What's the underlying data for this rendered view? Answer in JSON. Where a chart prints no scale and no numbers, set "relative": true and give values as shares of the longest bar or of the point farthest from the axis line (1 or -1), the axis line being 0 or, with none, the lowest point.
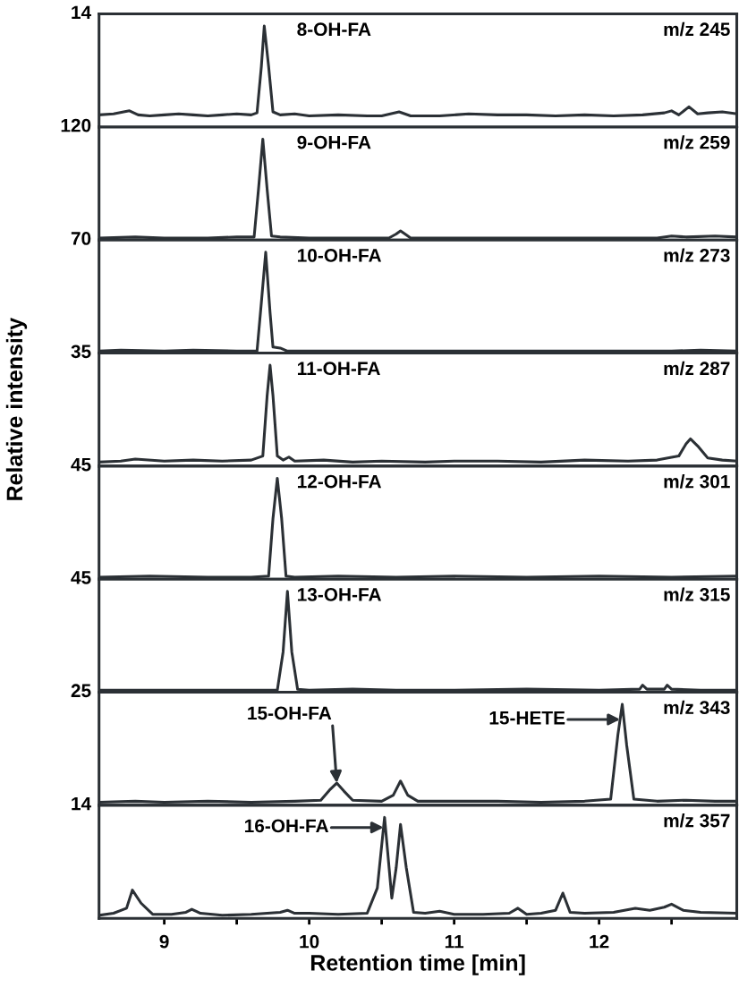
{
  "chart_data": [
    {
      "type": "line",
      "relative": true,
      "xlim": [
        8.55,
        12.95
      ],
      "tick_labels": false,
      "annotations": [
        "14",
        "8-OH-FA",
        "m/z 245"
      ],
      "series": [
        {
          "color": "#2b3035",
          "x": [
            8.55,
            8.65,
            8.72,
            8.76,
            8.82,
            8.9,
            9.0,
            9.1,
            9.2,
            9.3,
            9.4,
            9.5,
            9.6,
            9.64,
            9.67,
            9.69,
            9.72,
            9.75,
            9.8,
            9.9,
            10.0,
            10.2,
            10.4,
            10.5,
            10.62,
            10.7,
            10.9,
            11.1,
            11.3,
            11.5,
            11.7,
            11.9,
            12.1,
            12.3,
            12.45,
            12.5,
            12.55,
            12.62,
            12.68,
            12.75,
            12.85,
            12.95
          ],
          "values": [
            0.12,
            0.13,
            0.15,
            0.16,
            0.12,
            0.11,
            0.12,
            0.13,
            0.12,
            0.11,
            0.12,
            0.13,
            0.12,
            0.14,
            0.6,
            1.0,
            0.6,
            0.15,
            0.12,
            0.13,
            0.11,
            0.12,
            0.11,
            0.11,
            0.15,
            0.11,
            0.11,
            0.13,
            0.12,
            0.12,
            0.11,
            0.12,
            0.11,
            0.12,
            0.14,
            0.16,
            0.12,
            0.2,
            0.13,
            0.14,
            0.15,
            0.13
          ]
        }
      ]
    },
    {
      "type": "line",
      "relative": true,
      "xlim": [
        8.55,
        12.95
      ],
      "tick_labels": false,
      "annotations": [
        "120",
        "9-OH-FA",
        "m/z 259"
      ],
      "series": [
        {
          "color": "#2b3035",
          "x": [
            8.55,
            8.8,
            9.0,
            9.3,
            9.5,
            9.62,
            9.65,
            9.68,
            9.71,
            9.74,
            9.8,
            10.0,
            10.3,
            10.55,
            10.6,
            10.63,
            10.67,
            10.7,
            11.0,
            11.5,
            12.0,
            12.4,
            12.5,
            12.6,
            12.8,
            12.95
          ],
          "values": [
            0.02,
            0.03,
            0.02,
            0.02,
            0.03,
            0.03,
            0.5,
            1.0,
            0.5,
            0.04,
            0.03,
            0.02,
            0.02,
            0.02,
            0.06,
            0.09,
            0.05,
            0.02,
            0.02,
            0.02,
            0.02,
            0.02,
            0.04,
            0.03,
            0.04,
            0.03
          ]
        }
      ]
    },
    {
      "type": "line",
      "relative": true,
      "xlim": [
        8.55,
        12.95
      ],
      "tick_labels": false,
      "annotations": [
        "70",
        "10-OH-FA",
        "m/z 273"
      ],
      "series": [
        {
          "color": "#2b3035",
          "x": [
            8.55,
            8.7,
            9.0,
            9.2,
            9.5,
            9.64,
            9.67,
            9.7,
            9.73,
            9.75,
            9.8,
            9.85,
            10.0,
            10.5,
            11.0,
            11.5,
            12.0,
            12.5,
            12.7,
            12.95
          ],
          "values": [
            0.02,
            0.03,
            0.02,
            0.03,
            0.02,
            0.02,
            0.5,
            1.0,
            0.4,
            0.06,
            0.05,
            0.02,
            0.02,
            0.02,
            0.02,
            0.02,
            0.02,
            0.02,
            0.03,
            0.02
          ]
        }
      ]
    },
    {
      "type": "line",
      "relative": true,
      "xlim": [
        8.55,
        12.95
      ],
      "tick_labels": false,
      "ylabel": "Relative intensity",
      "annotations": [
        "35",
        "11-OH-FA",
        "m/z 287"
      ],
      "series": [
        {
          "color": "#2b3035",
          "x": [
            8.55,
            8.7,
            8.8,
            9.0,
            9.2,
            9.4,
            9.6,
            9.68,
            9.71,
            9.73,
            9.75,
            9.78,
            9.82,
            9.86,
            9.9,
            10.1,
            10.3,
            10.5,
            10.8,
            11.0,
            11.3,
            11.6,
            11.9,
            12.2,
            12.4,
            12.55,
            12.6,
            12.63,
            12.68,
            12.75,
            12.85,
            12.95
          ],
          "values": [
            0.04,
            0.05,
            0.07,
            0.05,
            0.06,
            0.05,
            0.06,
            0.1,
            0.7,
            1.0,
            0.7,
            0.1,
            0.06,
            0.09,
            0.05,
            0.06,
            0.04,
            0.05,
            0.04,
            0.05,
            0.05,
            0.04,
            0.06,
            0.05,
            0.06,
            0.1,
            0.22,
            0.27,
            0.2,
            0.08,
            0.06,
            0.05
          ]
        }
      ]
    },
    {
      "type": "line",
      "relative": true,
      "xlim": [
        8.55,
        12.95
      ],
      "tick_labels": false,
      "annotations": [
        "45",
        "12-OH-FA",
        "m/z 301"
      ],
      "series": [
        {
          "color": "#2b3035",
          "x": [
            8.55,
            8.9,
            9.3,
            9.6,
            9.72,
            9.75,
            9.78,
            9.81,
            9.84,
            9.9,
            10.2,
            10.6,
            11.0,
            11.5,
            12.0,
            12.5,
            12.95
          ],
          "values": [
            0.02,
            0.03,
            0.02,
            0.02,
            0.03,
            0.6,
            1.0,
            0.6,
            0.03,
            0.02,
            0.03,
            0.02,
            0.03,
            0.02,
            0.03,
            0.02,
            0.03
          ]
        }
      ]
    },
    {
      "type": "line",
      "relative": true,
      "xlim": [
        8.55,
        12.95
      ],
      "tick_labels": false,
      "annotations": [
        "45",
        "13-OH-FA",
        "m/z 315"
      ],
      "series": [
        {
          "color": "#2b3035",
          "x": [
            8.55,
            9.0,
            9.5,
            9.78,
            9.82,
            9.85,
            9.88,
            9.92,
            10.0,
            10.3,
            10.6,
            11.0,
            11.5,
            12.0,
            12.28,
            12.3,
            12.33,
            12.45,
            12.47,
            12.5,
            12.7,
            12.95
          ],
          "values": [
            0.02,
            0.02,
            0.02,
            0.02,
            0.4,
            1.0,
            0.4,
            0.03,
            0.02,
            0.03,
            0.02,
            0.02,
            0.03,
            0.02,
            0.03,
            0.07,
            0.03,
            0.03,
            0.07,
            0.03,
            0.02,
            0.02
          ]
        }
      ]
    },
    {
      "type": "line",
      "relative": true,
      "xlim": [
        8.55,
        12.95
      ],
      "tick_labels": false,
      "annotations": [
        "25",
        {
          "text": "15-OH-FA",
          "x": 10.19,
          "y": 0.22
        },
        {
          "text": "15-HETE",
          "x": 12.145,
          "y": 0.85
        },
        "m/z 343"
      ],
      "series": [
        {
          "color": "#2b3035",
          "x": [
            8.55,
            8.8,
            9.0,
            9.3,
            9.6,
            9.9,
            10.08,
            10.14,
            10.19,
            10.24,
            10.3,
            10.5,
            10.58,
            10.63,
            10.68,
            10.75,
            11.0,
            11.3,
            11.6,
            11.9,
            12.08,
            12.13,
            12.16,
            12.19,
            12.24,
            12.4,
            12.6,
            12.8,
            12.95
          ],
          "values": [
            0.03,
            0.04,
            0.03,
            0.04,
            0.03,
            0.04,
            0.05,
            0.15,
            0.22,
            0.14,
            0.05,
            0.04,
            0.1,
            0.24,
            0.1,
            0.04,
            0.04,
            0.04,
            0.03,
            0.04,
            0.06,
            0.7,
            1.0,
            0.6,
            0.06,
            0.04,
            0.05,
            0.04,
            0.04
          ]
        }
      ]
    },
    {
      "type": "line",
      "relative": true,
      "xlim": [
        8.55,
        12.95
      ],
      "xticks": [
        9,
        {
          "value": 9.5,
          "label": null
        },
        10,
        {
          "value": 10.5,
          "label": null
        },
        11,
        {
          "value": 11.5,
          "label": null
        },
        12,
        {
          "value": 12.5,
          "label": null
        }
      ],
      "tick_labels": "x",
      "xlabel": "Retention time [min]",
      "annotations": [
        "14",
        {
          "text": "16-OH-FA",
          "x": 10.513,
          "y": 0.9
        },
        "m/z 357"
      ],
      "series": [
        {
          "color": "#2b3035",
          "x": [
            8.55,
            8.65,
            8.74,
            8.78,
            8.84,
            8.92,
            9.05,
            9.15,
            9.19,
            9.25,
            9.4,
            9.6,
            9.8,
            9.85,
            9.9,
            10.0,
            10.2,
            10.4,
            10.47,
            10.52,
            10.57,
            10.6,
            10.63,
            10.67,
            10.72,
            10.8,
            10.9,
            11.0,
            11.2,
            11.38,
            11.44,
            11.5,
            11.6,
            11.7,
            11.75,
            11.8,
            11.9,
            12.1,
            12.25,
            12.35,
            12.45,
            12.5,
            12.58,
            12.7,
            12.95
          ],
          "values": [
            0.03,
            0.05,
            0.1,
            0.28,
            0.15,
            0.04,
            0.04,
            0.06,
            0.09,
            0.05,
            0.03,
            0.04,
            0.06,
            0.08,
            0.05,
            0.05,
            0.04,
            0.05,
            0.3,
            1.0,
            0.2,
            0.5,
            0.93,
            0.5,
            0.06,
            0.05,
            0.07,
            0.04,
            0.04,
            0.05,
            0.1,
            0.04,
            0.05,
            0.08,
            0.25,
            0.06,
            0.05,
            0.06,
            0.1,
            0.08,
            0.11,
            0.14,
            0.08,
            0.06,
            0.05
          ]
        }
      ]
    }
  ]
}
